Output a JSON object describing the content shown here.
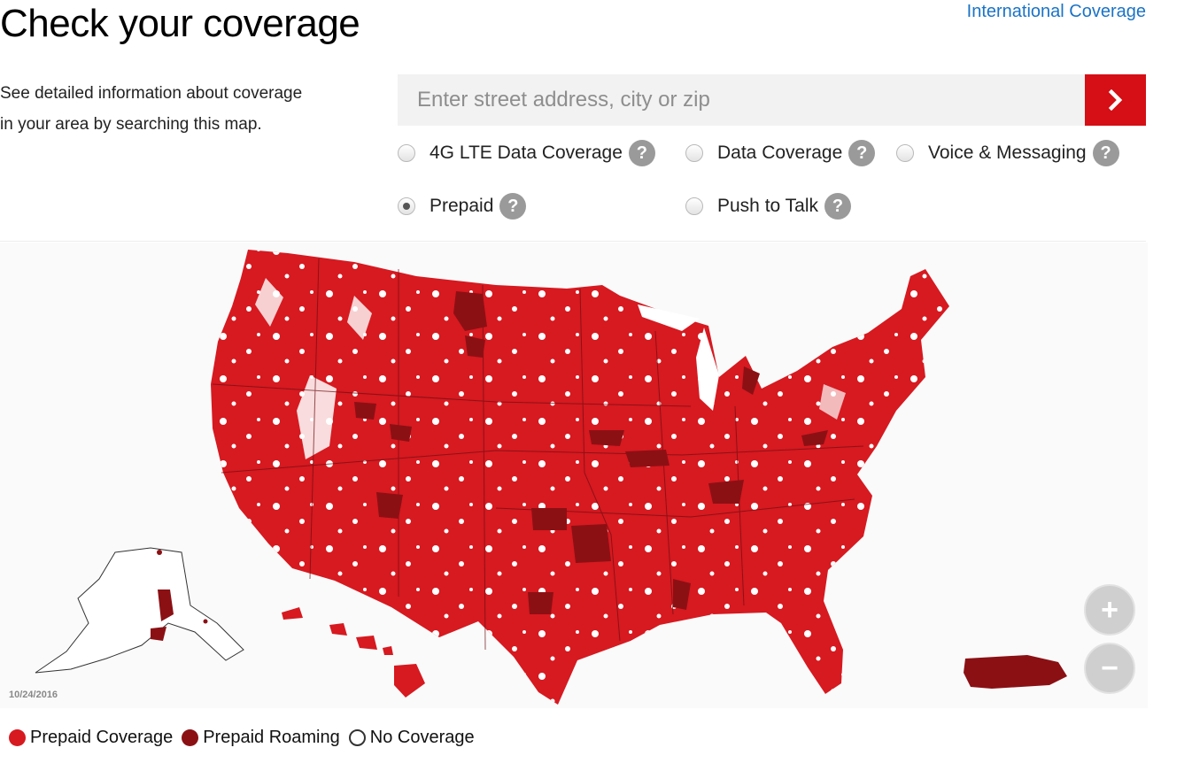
{
  "header": {
    "title": "Check your coverage",
    "international_link": "International Coverage"
  },
  "intro": {
    "line1": "See detailed information about coverage",
    "line2": "in your area by searching this map."
  },
  "search": {
    "placeholder": "Enter street address, city or zip",
    "button_icon": "chevron-right-icon"
  },
  "options": [
    {
      "label": "4G LTE Data Coverage",
      "checked": false
    },
    {
      "label": "Data Coverage",
      "checked": false
    },
    {
      "label": "Voice & Messaging",
      "checked": false
    },
    {
      "label": "Prepaid",
      "checked": true
    },
    {
      "label": "Push to Talk",
      "checked": false
    }
  ],
  "map": {
    "date_stamp": "10/24/2016",
    "zoom_in": "+",
    "zoom_out": "−",
    "colors": {
      "coverage": "#d71920",
      "roaming": "#8b1014",
      "none": "#ffffff"
    }
  },
  "legend": [
    {
      "label": "Prepaid Coverage",
      "color": "#d71920"
    },
    {
      "label": "Prepaid Roaming",
      "color": "#8b1014"
    },
    {
      "label": "No Coverage",
      "color": "#ffffff"
    }
  ]
}
